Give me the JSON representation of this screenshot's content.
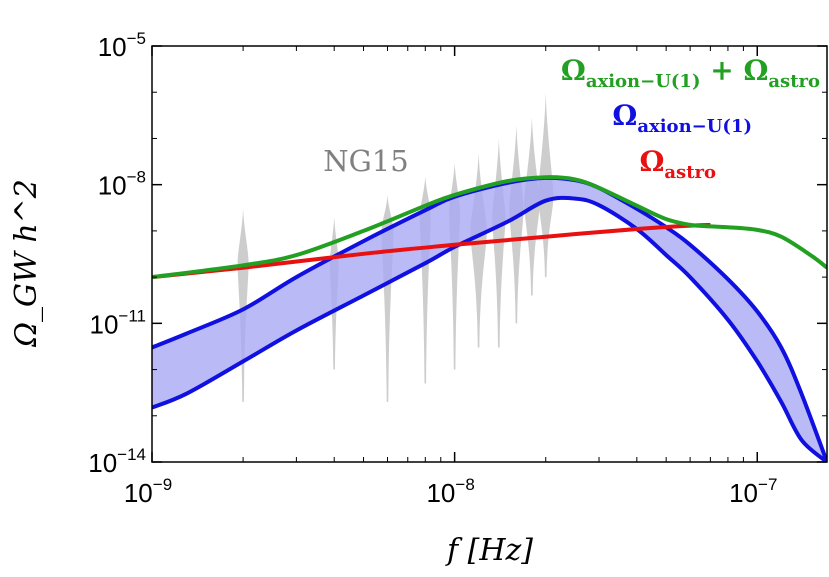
{
  "chart_data": {
    "type": "line",
    "xlabel": "f [Hz]",
    "ylabel": "Ω_GW h^2",
    "x_scale": "log",
    "y_scale": "log",
    "xlim": [
      1e-09,
      1.7e-07
    ],
    "ylim": [
      1e-14,
      1e-05
    ],
    "grid": false,
    "x_ticks": [
      {
        "value": 1e-09,
        "base": "10",
        "exp": "−9"
      },
      {
        "value": 1e-08,
        "base": "10",
        "exp": "−8"
      },
      {
        "value": 1e-07,
        "base": "10",
        "exp": "−7"
      }
    ],
    "y_ticks": [
      {
        "value": 1e-14,
        "base": "10",
        "exp": "−14"
      },
      {
        "value": 1e-11,
        "base": "10",
        "exp": "−11"
      },
      {
        "value": 1e-08,
        "base": "10",
        "exp": "−8"
      },
      {
        "value": 1e-05,
        "base": "10",
        "exp": "−5"
      }
    ],
    "legend": {
      "placement": "top-right",
      "entries": [
        {
          "main1": "Ω",
          "sub1": "axion−U(1)",
          "plus": " + ",
          "main2": "Ω",
          "sub2": "astro",
          "color": "#22a022"
        },
        {
          "main1": "Ω",
          "sub1": "axion−U(1)",
          "color": "#1010e0"
        },
        {
          "main1": "Ω",
          "sub1": "astro",
          "color": "#e81010"
        }
      ]
    },
    "annotation": "NG15",
    "series": [
      {
        "name": "Ω_astro",
        "color": "#e81010",
        "x": [
          1e-09,
          2e-09,
          5e-09,
          1e-08,
          2e-08,
          4e-08,
          6e-08,
          7e-08
        ],
        "y": [
          1e-10,
          1.6e-10,
          3.2e-10,
          5e-10,
          7.5e-10,
          1.1e-09,
          1.3e-09,
          1.35e-09
        ]
      },
      {
        "name": "Ω_axion−U(1) + Ω_astro",
        "color": "#22a022",
        "x": [
          1e-09,
          2e-09,
          3e-09,
          5e-09,
          8e-09,
          1e-08,
          1.5e-08,
          2e-08,
          2.5e-08,
          3e-08,
          4e-08,
          5e-08,
          6e-08,
          7e-08,
          8e-08,
          1e-07,
          1.2e-07,
          1.5e-07,
          1.7e-07
        ],
        "y": [
          1e-10,
          1.8e-10,
          3e-10,
          1e-09,
          3.5e-09,
          6e-09,
          1.2e-08,
          1.45e-08,
          1.3e-08,
          8.5e-09,
          3.5e-09,
          1.8e-09,
          1.35e-09,
          1.25e-09,
          1.2e-09,
          1.05e-09,
          7.5e-10,
          3e-10,
          1.6e-10
        ]
      }
    ],
    "band": {
      "name": "Ω_axion−U(1)",
      "color": "#1010e0",
      "fill": "#a9a9f5",
      "x": [
        1e-09,
        1.3e-09,
        2e-09,
        3e-09,
        5e-09,
        8e-09,
        1e-08,
        1.5e-08,
        2e-08,
        2.5e-08,
        3e-08,
        4e-08,
        5e-08,
        6e-08,
        8e-08,
        1e-07,
        1.2e-07,
        1.4e-07,
        1.7e-07
      ],
      "upper": [
        3e-12,
        6e-12,
        2e-11,
        1e-10,
        6e-10,
        2.8e-09,
        5.5e-09,
        1.1e-08,
        1.4e-08,
        1.25e-08,
        8.5e-09,
        3e-09,
        1.2e-09,
        5e-10,
        9e-11,
        1.8e-11,
        3e-12,
        3e-13,
        1e-14
      ],
      "lower": [
        1.5e-13,
        3e-13,
        1.5e-12,
        7e-12,
        4e-11,
        2e-10,
        4.5e-10,
        1.6e-09,
        4.5e-09,
        5e-09,
        3.6e-09,
        1.1e-09,
        3e-10,
        1e-10,
        1.2e-11,
        1.5e-12,
        2e-13,
        3e-14,
        1e-14
      ]
    },
    "violins": [
      {
        "f": 2e-09,
        "median": 2e-10,
        "low": 2e-13,
        "high": 3e-09,
        "width": 0.5
      },
      {
        "f": 4e-09,
        "median": 2e-10,
        "low": 1e-12,
        "high": 2e-09,
        "width": 0.4
      },
      {
        "f": 6e-09,
        "median": 9e-10,
        "low": 2e-13,
        "high": 6e-09,
        "width": 0.55
      },
      {
        "f": 8e-09,
        "median": 2e-09,
        "low": 5e-13,
        "high": 1.5e-08,
        "width": 0.5
      },
      {
        "f": 1e-08,
        "median": 2.5e-09,
        "low": 1e-12,
        "high": 3e-08,
        "width": 0.5
      },
      {
        "f": 1.2e-08,
        "median": 1e-09,
        "low": 3e-12,
        "high": 5e-08,
        "width": 0.75
      },
      {
        "f": 1.4e-08,
        "median": 2e-09,
        "low": 3e-12,
        "high": 1e-07,
        "width": 0.6
      },
      {
        "f": 1.6e-08,
        "median": 3e-09,
        "low": 1e-11,
        "high": 2e-07,
        "width": 0.65
      },
      {
        "f": 1.8e-08,
        "median": 4e-09,
        "low": 4e-11,
        "high": 3e-07,
        "width": 0.7
      },
      {
        "f": 2e-08,
        "median": 6e-09,
        "low": 1e-10,
        "high": 1e-06,
        "width": 0.7
      }
    ]
  }
}
